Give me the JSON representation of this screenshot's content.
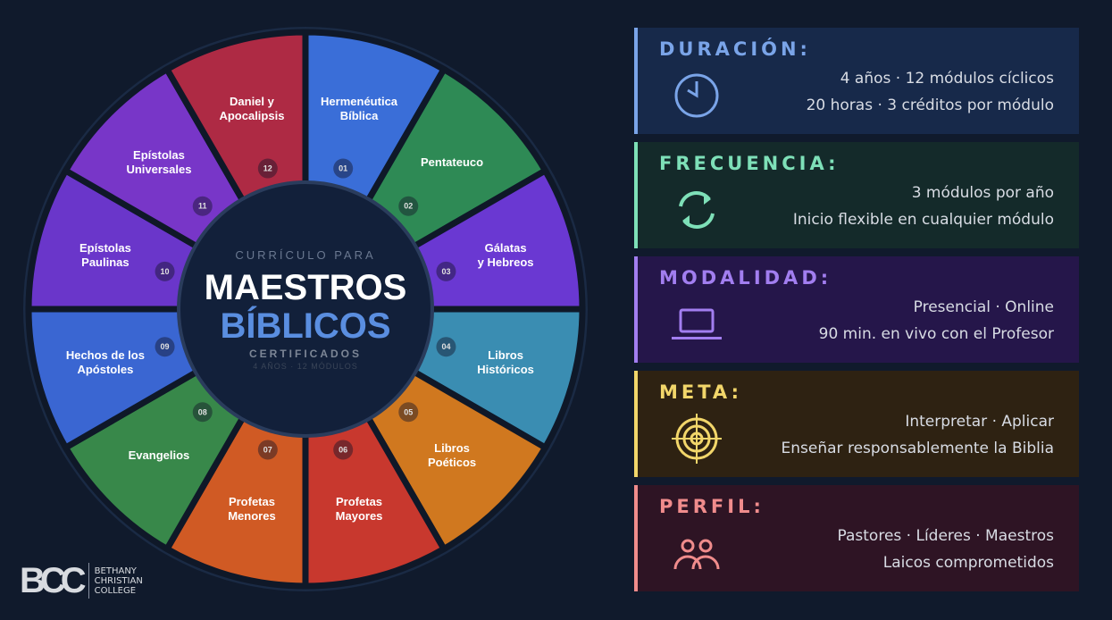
{
  "wheel": {
    "modules": [
      {
        "num": "01",
        "label": [
          "Hermenéutica",
          "Bíblica"
        ],
        "color": "#3a6ed8"
      },
      {
        "num": "02",
        "label": [
          "Pentateuco"
        ],
        "color": "#2e8a55"
      },
      {
        "num": "03",
        "label": [
          "Gálatas",
          "y Hebreos"
        ],
        "color": "#6a38d2"
      },
      {
        "num": "04",
        "label": [
          "Libros",
          "Históricos"
        ],
        "color": "#3a8db2"
      },
      {
        "num": "05",
        "label": [
          "Libros",
          "Poéticos"
        ],
        "color": "#d0781f"
      },
      {
        "num": "06",
        "label": [
          "Profetas",
          "Mayores"
        ],
        "color": "#c8382e"
      },
      {
        "num": "07",
        "label": [
          "Profetas",
          "Menores"
        ],
        "color": "#d05a24"
      },
      {
        "num": "08",
        "label": [
          "Evangelios"
        ],
        "color": "#38884a"
      },
      {
        "num": "09",
        "label": [
          "Hechos de los",
          "Apóstoles"
        ],
        "color": "#3a66d2"
      },
      {
        "num": "10",
        "label": [
          "Epístolas",
          "Paulinas"
        ],
        "color": "#6a36ca"
      },
      {
        "num": "11",
        "label": [
          "Epístolas",
          "Universales"
        ],
        "color": "#7836c8"
      },
      {
        "num": "12",
        "label": [
          "Daniel y",
          "Apocalipsis"
        ],
        "color": "#ae2a44"
      }
    ],
    "center": {
      "pre": "CURRÍCULO PARA",
      "title1": "MAESTROS",
      "title2": "BÍBLICOS",
      "sub": "CERTIFICADOS",
      "meta": "4 AÑOS · 12 MÓDULOS"
    }
  },
  "logo": {
    "mark": "BCC",
    "lines": [
      "BETHANY",
      "CHRISTIAN",
      "COLLEGE"
    ]
  },
  "panels": [
    {
      "title": "DURACIÓN:",
      "icon": "clock-icon",
      "color": "#7aa4e8",
      "bg": "#17294a",
      "l1": "4 años  ·  12 módulos cíclicos",
      "l2": "20 horas · 3 créditos por módulo"
    },
    {
      "title": "FRECUENCIA:",
      "icon": "refresh-icon",
      "color": "#7ee0b8",
      "bg": "#142a2a",
      "l1": "3 módulos por año",
      "l2": "Inicio flexible en cualquier módulo"
    },
    {
      "title": "MODALIDAD:",
      "icon": "laptop-icon",
      "color": "#a27ef0",
      "bg": "#25164a",
      "l1": "Presencial  ·  Online",
      "l2": "90 min. en vivo con el Profesor"
    },
    {
      "title": "META:",
      "icon": "target-icon",
      "color": "#f2d66a",
      "bg": "#2e2212",
      "l1": "Interpretar  ·  Aplicar",
      "l2": "Enseñar responsablemente la Biblia"
    },
    {
      "title": "PERFIL:",
      "icon": "users-icon",
      "color": "#f08c8c",
      "bg": "#2e1424",
      "l1": "Pastores  ·  Líderes  ·  Maestros",
      "l2": "Laicos comprometidos"
    }
  ]
}
